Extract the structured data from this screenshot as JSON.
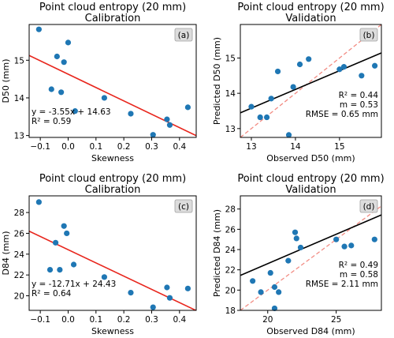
{
  "chart_data": [
    {
      "type": "scatter",
      "panel_label": "(a)",
      "title": [
        "Point cloud entropy (20 mm)",
        "Calibration"
      ],
      "xlabel": "Skewness",
      "ylabel": "D50 (mm)",
      "xlim": [
        -0.14,
        0.46
      ],
      "ylim": [
        12.95,
        15.95
      ],
      "xticks": [
        -0.1,
        0.0,
        0.1,
        0.2,
        0.3,
        0.4
      ],
      "xtick_labels": [
        "−0.1",
        "0.0",
        "0.1",
        "0.2",
        "0.3",
        "0.4"
      ],
      "yticks": [
        13,
        14,
        15
      ],
      "ytick_labels": [
        "13",
        "14",
        "15"
      ],
      "points": [
        [
          -0.105,
          15.82
        ],
        [
          -0.04,
          15.1
        ],
        [
          0.0,
          15.47
        ],
        [
          -0.015,
          14.95
        ],
        [
          -0.06,
          14.23
        ],
        [
          -0.025,
          14.15
        ],
        [
          0.025,
          13.65
        ],
        [
          0.13,
          14.0
        ],
        [
          0.225,
          13.58
        ],
        [
          0.305,
          13.02
        ],
        [
          0.355,
          13.43
        ],
        [
          0.365,
          13.28
        ],
        [
          0.43,
          13.75
        ]
      ],
      "fit": {
        "slope": -3.55,
        "intercept": 14.63
      },
      "annotations": [
        "y = -3.55x + 14.63",
        "R² = 0.59"
      ],
      "grid": false,
      "colors": {
        "points": "#1f77b4",
        "fit": "#e8261d"
      }
    },
    {
      "type": "scatter",
      "panel_label": "(b)",
      "title": [
        "Point cloud entropy (20 mm)",
        "Validation"
      ],
      "xlabel": "Observed D50 (mm)",
      "ylabel": "Predicted D50 (mm)",
      "xlim": [
        12.75,
        15.95
      ],
      "ylim": [
        12.75,
        15.95
      ],
      "xticks": [
        13,
        14,
        15
      ],
      "xtick_labels": [
        "13",
        "14",
        "15"
      ],
      "yticks": [
        13,
        14,
        15
      ],
      "ytick_labels": [
        "13",
        "14",
        "15"
      ],
      "points": [
        [
          13.0,
          13.62
        ],
        [
          13.2,
          13.32
        ],
        [
          13.35,
          13.32
        ],
        [
          13.45,
          13.85
        ],
        [
          13.6,
          14.62
        ],
        [
          13.85,
          12.82
        ],
        [
          13.95,
          14.18
        ],
        [
          14.1,
          14.82
        ],
        [
          14.3,
          14.97
        ],
        [
          15.0,
          14.68
        ],
        [
          15.1,
          14.75
        ],
        [
          15.5,
          14.5
        ],
        [
          15.8,
          14.78
        ]
      ],
      "fit": {
        "slope": 0.53,
        "intercept": 6.69
      },
      "identity_line": true,
      "annotations": [
        "R² = 0.44",
        "m = 0.53",
        "RMSE = 0.65 mm"
      ],
      "grid": false,
      "colors": {
        "points": "#1f77b4",
        "fit": "#000000",
        "identity": "#f28b82"
      }
    },
    {
      "type": "scatter",
      "panel_label": "(c)",
      "title": [
        "Point cloud entropy (20 mm)",
        "Calibration"
      ],
      "xlabel": "Skewness",
      "ylabel": "D84 (mm)",
      "xlim": [
        -0.14,
        0.46
      ],
      "ylim": [
        18.6,
        29.6
      ],
      "xticks": [
        -0.1,
        0.0,
        0.1,
        0.2,
        0.3,
        0.4
      ],
      "xtick_labels": [
        "−0.1",
        "0.0",
        "0.1",
        "0.2",
        "0.3",
        "0.4"
      ],
      "yticks": [
        20,
        22,
        24,
        26,
        28
      ],
      "ytick_labels": [
        "20",
        "22",
        "24",
        "26",
        "28"
      ],
      "points": [
        [
          -0.105,
          29.0
        ],
        [
          -0.015,
          26.7
        ],
        [
          -0.045,
          25.1
        ],
        [
          -0.005,
          26.0
        ],
        [
          0.02,
          23.0
        ],
        [
          -0.065,
          22.5
        ],
        [
          -0.03,
          22.5
        ],
        [
          0.13,
          21.8
        ],
        [
          0.225,
          20.3
        ],
        [
          0.305,
          18.9
        ],
        [
          0.355,
          20.8
        ],
        [
          0.365,
          19.8
        ],
        [
          0.43,
          20.7
        ]
      ],
      "fit": {
        "slope": -12.71,
        "intercept": 24.43
      },
      "annotations": [
        "y = -12.71x + 24.43",
        "R² = 0.64"
      ],
      "grid": false,
      "colors": {
        "points": "#1f77b4",
        "fit": "#e8261d"
      }
    },
    {
      "type": "scatter",
      "panel_label": "(d)",
      "title": [
        "Point cloud entropy (20 mm)",
        "Validation"
      ],
      "xlabel": "Observed D84 (mm)",
      "ylabel": "Predicted D84 (mm)",
      "xlim": [
        18.0,
        28.3
      ],
      "ylim": [
        18.0,
        29.3
      ],
      "xticks": [
        20,
        25
      ],
      "xtick_labels": [
        "20",
        "25"
      ],
      "yticks": [
        18,
        20,
        22,
        24,
        26,
        28
      ],
      "ytick_labels": [
        "18",
        "20",
        "22",
        "24",
        "26",
        "28"
      ],
      "points": [
        [
          18.9,
          20.9
        ],
        [
          19.5,
          19.8
        ],
        [
          20.2,
          21.7
        ],
        [
          20.5,
          18.2
        ],
        [
          20.5,
          20.3
        ],
        [
          20.8,
          19.8
        ],
        [
          21.5,
          22.9
        ],
        [
          22.0,
          25.7
        ],
        [
          22.1,
          25.1
        ],
        [
          22.4,
          24.2
        ],
        [
          25.0,
          25.0
        ],
        [
          25.6,
          24.3
        ],
        [
          26.1,
          24.4
        ],
        [
          27.8,
          25.0
        ]
      ],
      "fit": {
        "slope": 0.58,
        "intercept": 11.01
      },
      "identity_line": true,
      "annotations": [
        "R² = 0.49",
        "m = 0.58",
        "RMSE = 2.11 mm"
      ],
      "grid": false,
      "colors": {
        "points": "#1f77b4",
        "fit": "#000000",
        "identity": "#f28b82"
      }
    }
  ]
}
